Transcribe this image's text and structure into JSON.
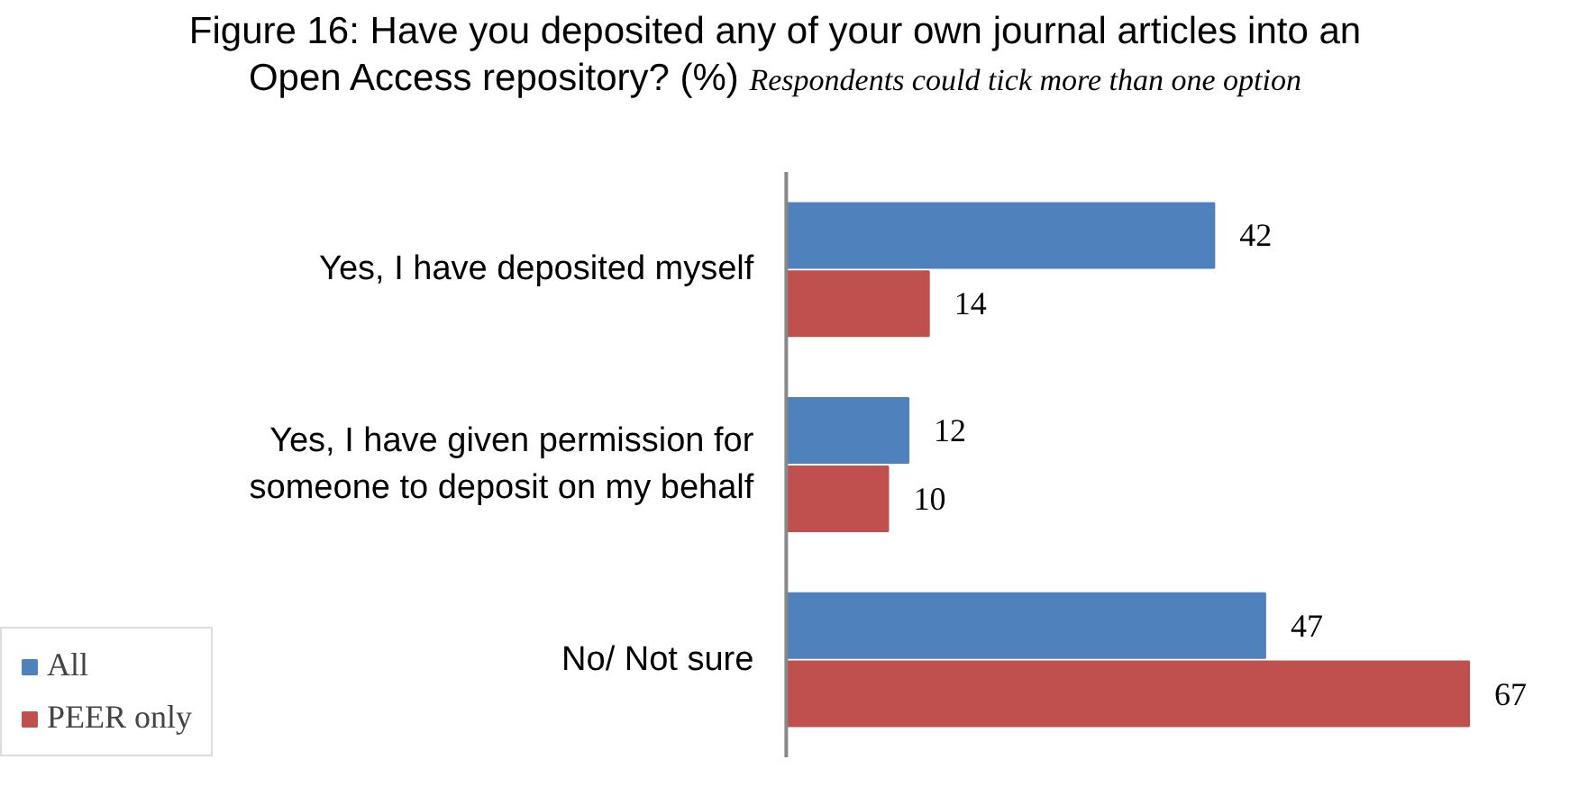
{
  "chart_data": {
    "type": "bar",
    "orientation": "horizontal",
    "title": "Figure 16: Have you deposited any of your own journal articles into an\nOpen Access repository? (%)",
    "subtitle": "Respondents could tick more than one option",
    "categories": [
      "Yes, I have deposited myself",
      "Yes, I have given permission for\nsomeone to deposit on my behalf",
      "No/ Not sure"
    ],
    "series": [
      {
        "name": "All",
        "color": "#4f81bd",
        "values": [
          42,
          12,
          47
        ]
      },
      {
        "name": "PEER only",
        "color": "#c0504d",
        "values": [
          14,
          10,
          67
        ]
      }
    ],
    "data_labels": true,
    "legend": "bottom left"
  }
}
